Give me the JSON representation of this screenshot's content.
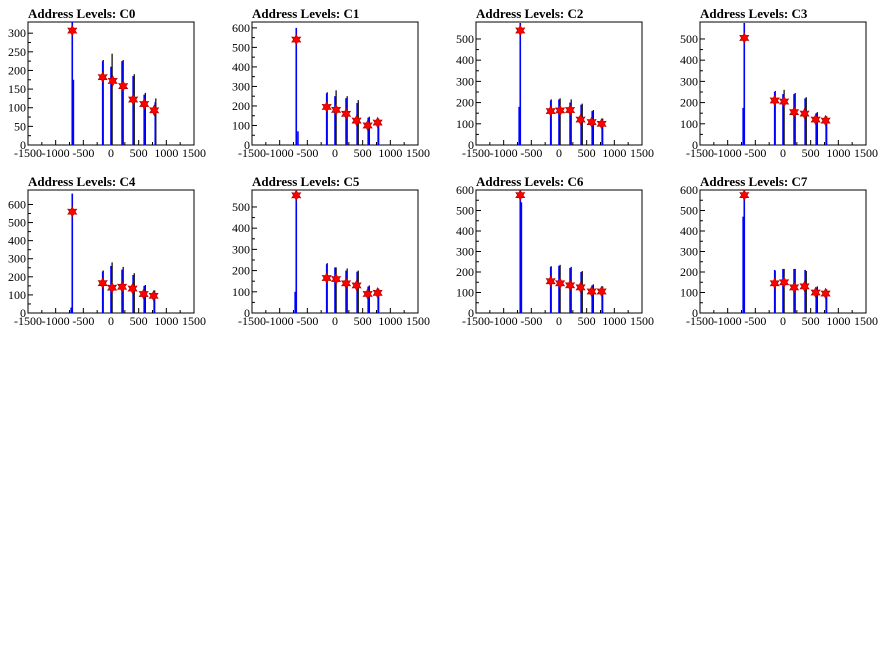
{
  "chart_data": [
    {
      "type": "bar",
      "title": "Address Levels: C0",
      "xlim": [
        -1500,
        1500
      ],
      "ylim": [
        0,
        330
      ],
      "xticks": [
        -1500,
        -1000,
        -500,
        0,
        500,
        1000,
        1500
      ],
      "yticks": [
        0,
        50,
        100,
        150,
        200,
        250,
        300
      ],
      "spikes_blue": [
        [
          -700,
          330
        ],
        [
          -680,
          175
        ],
        [
          -150,
          225
        ],
        [
          0,
          210
        ],
        [
          200,
          225
        ],
        [
          400,
          185
        ],
        [
          600,
          135
        ],
        [
          800,
          115
        ]
      ],
      "spikes_black": [
        [
          -140,
          228
        ],
        [
          20,
          245
        ],
        [
          220,
          228
        ],
        [
          420,
          190
        ],
        [
          620,
          140
        ],
        [
          810,
          125
        ]
      ],
      "markers": [
        [
          -700,
          307
        ],
        [
          -150,
          182
        ],
        [
          30,
          172
        ],
        [
          220,
          158
        ],
        [
          400,
          122
        ],
        [
          600,
          110
        ],
        [
          780,
          93
        ]
      ]
    },
    {
      "type": "bar",
      "title": "Address Levels: C1",
      "xlim": [
        -1500,
        1500
      ],
      "ylim": [
        0,
        630
      ],
      "xticks": [
        -1500,
        -1000,
        -500,
        0,
        500,
        1000,
        1500
      ],
      "yticks": [
        0,
        100,
        200,
        300,
        400,
        500,
        600
      ],
      "spikes_blue": [
        [
          -700,
          600
        ],
        [
          -670,
          70
        ],
        [
          -150,
          265
        ],
        [
          0,
          250
        ],
        [
          200,
          240
        ],
        [
          400,
          215
        ],
        [
          600,
          140
        ],
        [
          780,
          130
        ]
      ],
      "spikes_black": [
        [
          -140,
          270
        ],
        [
          20,
          280
        ],
        [
          220,
          250
        ],
        [
          420,
          230
        ],
        [
          620,
          145
        ],
        [
          790,
          135
        ]
      ],
      "markers": [
        [
          -700,
          540
        ],
        [
          -150,
          195
        ],
        [
          20,
          180
        ],
        [
          200,
          160
        ],
        [
          390,
          125
        ],
        [
          590,
          100
        ],
        [
          770,
          115
        ]
      ]
    },
    {
      "type": "bar",
      "title": "Address Levels: C2",
      "xlim": [
        -1500,
        1500
      ],
      "ylim": [
        0,
        580
      ],
      "xticks": [
        -1500,
        -1000,
        -500,
        0,
        500,
        1000,
        1500
      ],
      "yticks": [
        0,
        100,
        200,
        300,
        400,
        500
      ],
      "spikes_blue": [
        [
          -700,
          575
        ],
        [
          -720,
          180
        ],
        [
          -150,
          210
        ],
        [
          0,
          215
        ],
        [
          200,
          200
        ],
        [
          400,
          190
        ],
        [
          600,
          160
        ],
        [
          780,
          120
        ]
      ],
      "spikes_black": [
        [
          -140,
          215
        ],
        [
          20,
          220
        ],
        [
          220,
          215
        ],
        [
          420,
          195
        ],
        [
          620,
          165
        ],
        [
          790,
          125
        ]
      ],
      "markers": [
        [
          -700,
          540
        ],
        [
          -150,
          160
        ],
        [
          20,
          163
        ],
        [
          200,
          165
        ],
        [
          390,
          120
        ],
        [
          590,
          108
        ],
        [
          770,
          100
        ]
      ]
    },
    {
      "type": "bar",
      "title": "Address Levels: C3",
      "xlim": [
        -1500,
        1500
      ],
      "ylim": [
        0,
        580
      ],
      "xticks": [
        -1500,
        -1000,
        -500,
        0,
        500,
        1000,
        1500
      ],
      "yticks": [
        0,
        100,
        200,
        300,
        400,
        500
      ],
      "spikes_blue": [
        [
          -700,
          575
        ],
        [
          -720,
          175
        ],
        [
          -150,
          250
        ],
        [
          0,
          240
        ],
        [
          200,
          240
        ],
        [
          400,
          220
        ],
        [
          600,
          150
        ],
        [
          780,
          130
        ]
      ],
      "spikes_black": [
        [
          -140,
          255
        ],
        [
          20,
          260
        ],
        [
          220,
          245
        ],
        [
          420,
          225
        ],
        [
          620,
          155
        ],
        [
          790,
          135
        ]
      ],
      "markers": [
        [
          -700,
          505
        ],
        [
          -150,
          210
        ],
        [
          20,
          205
        ],
        [
          200,
          155
        ],
        [
          390,
          148
        ],
        [
          590,
          120
        ],
        [
          770,
          115
        ]
      ]
    },
    {
      "type": "bar",
      "title": "Address Levels: C4",
      "xlim": [
        -1500,
        1500
      ],
      "ylim": [
        0,
        680
      ],
      "xticks": [
        -1500,
        -1000,
        -500,
        0,
        500,
        1000,
        1500
      ],
      "yticks": [
        0,
        100,
        200,
        300,
        400,
        500,
        600
      ],
      "spikes_blue": [
        [
          -700,
          660
        ],
        [
          -720,
          30
        ],
        [
          -150,
          230
        ],
        [
          0,
          260
        ],
        [
          200,
          240
        ],
        [
          400,
          210
        ],
        [
          600,
          150
        ],
        [
          780,
          120
        ]
      ],
      "spikes_black": [
        [
          -140,
          235
        ],
        [
          20,
          280
        ],
        [
          220,
          255
        ],
        [
          420,
          220
        ],
        [
          620,
          155
        ],
        [
          790,
          125
        ]
      ],
      "markers": [
        [
          -700,
          560
        ],
        [
          -150,
          165
        ],
        [
          20,
          140
        ],
        [
          200,
          145
        ],
        [
          390,
          135
        ],
        [
          590,
          105
        ],
        [
          770,
          95
        ]
      ]
    },
    {
      "type": "bar",
      "title": "Address Levels: C5",
      "xlim": [
        -1500,
        1500
      ],
      "ylim": [
        0,
        580
      ],
      "xticks": [
        -1500,
        -1000,
        -500,
        0,
        500,
        1000,
        1500
      ],
      "yticks": [
        0,
        100,
        200,
        300,
        400,
        500
      ],
      "spikes_blue": [
        [
          -700,
          575
        ],
        [
          -720,
          100
        ],
        [
          -150,
          230
        ],
        [
          0,
          215
        ],
        [
          200,
          200
        ],
        [
          400,
          195
        ],
        [
          600,
          125
        ],
        [
          780,
          110
        ]
      ],
      "spikes_black": [
        [
          -140,
          235
        ],
        [
          20,
          215
        ],
        [
          220,
          210
        ],
        [
          420,
          200
        ],
        [
          620,
          130
        ],
        [
          790,
          115
        ]
      ],
      "markers": [
        [
          -700,
          555
        ],
        [
          -150,
          165
        ],
        [
          20,
          160
        ],
        [
          200,
          140
        ],
        [
          390,
          130
        ],
        [
          590,
          90
        ],
        [
          770,
          95
        ]
      ]
    },
    {
      "type": "bar",
      "title": "Address Levels: C6",
      "xlim": [
        -1500,
        1500
      ],
      "ylim": [
        0,
        600
      ],
      "xticks": [
        -1500,
        -1000,
        -500,
        0,
        500,
        1000,
        1500
      ],
      "yticks": [
        0,
        100,
        200,
        300,
        400,
        500,
        600
      ],
      "spikes_blue": [
        [
          -700,
          580
        ],
        [
          -680,
          540
        ],
        [
          -150,
          225
        ],
        [
          0,
          230
        ],
        [
          200,
          220
        ],
        [
          400,
          200
        ],
        [
          600,
          135
        ],
        [
          780,
          125
        ]
      ],
      "spikes_black": [
        [
          -140,
          228
        ],
        [
          20,
          235
        ],
        [
          220,
          225
        ],
        [
          420,
          205
        ],
        [
          620,
          140
        ],
        [
          790,
          130
        ]
      ],
      "markers": [
        [
          -700,
          575
        ],
        [
          -150,
          155
        ],
        [
          20,
          145
        ],
        [
          200,
          135
        ],
        [
          390,
          125
        ],
        [
          590,
          105
        ],
        [
          770,
          105
        ]
      ]
    },
    {
      "type": "bar",
      "title": "Address Levels: C7",
      "xlim": [
        -1500,
        1500
      ],
      "ylim": [
        0,
        600
      ],
      "xticks": [
        -1500,
        -1000,
        -500,
        0,
        500,
        1000,
        1500
      ],
      "yticks": [
        0,
        100,
        200,
        300,
        400,
        500,
        600
      ],
      "spikes_blue": [
        [
          -700,
          580
        ],
        [
          -720,
          470
        ],
        [
          -150,
          210
        ],
        [
          0,
          215
        ],
        [
          200,
          215
        ],
        [
          400,
          210
        ],
        [
          600,
          125
        ],
        [
          780,
          110
        ]
      ],
      "spikes_black": [
        [
          -140,
          205
        ],
        [
          20,
          215
        ],
        [
          220,
          215
        ],
        [
          420,
          205
        ],
        [
          620,
          130
        ],
        [
          790,
          115
        ]
      ],
      "markers": [
        [
          -700,
          575
        ],
        [
          -150,
          145
        ],
        [
          20,
          150
        ],
        [
          200,
          125
        ],
        [
          390,
          130
        ],
        [
          590,
          100
        ],
        [
          770,
          95
        ]
      ]
    }
  ],
  "colors": {
    "series_blue": "#0000ff",
    "series_black": "#000000",
    "marker": "#ff0000",
    "axis": "#000000"
  }
}
